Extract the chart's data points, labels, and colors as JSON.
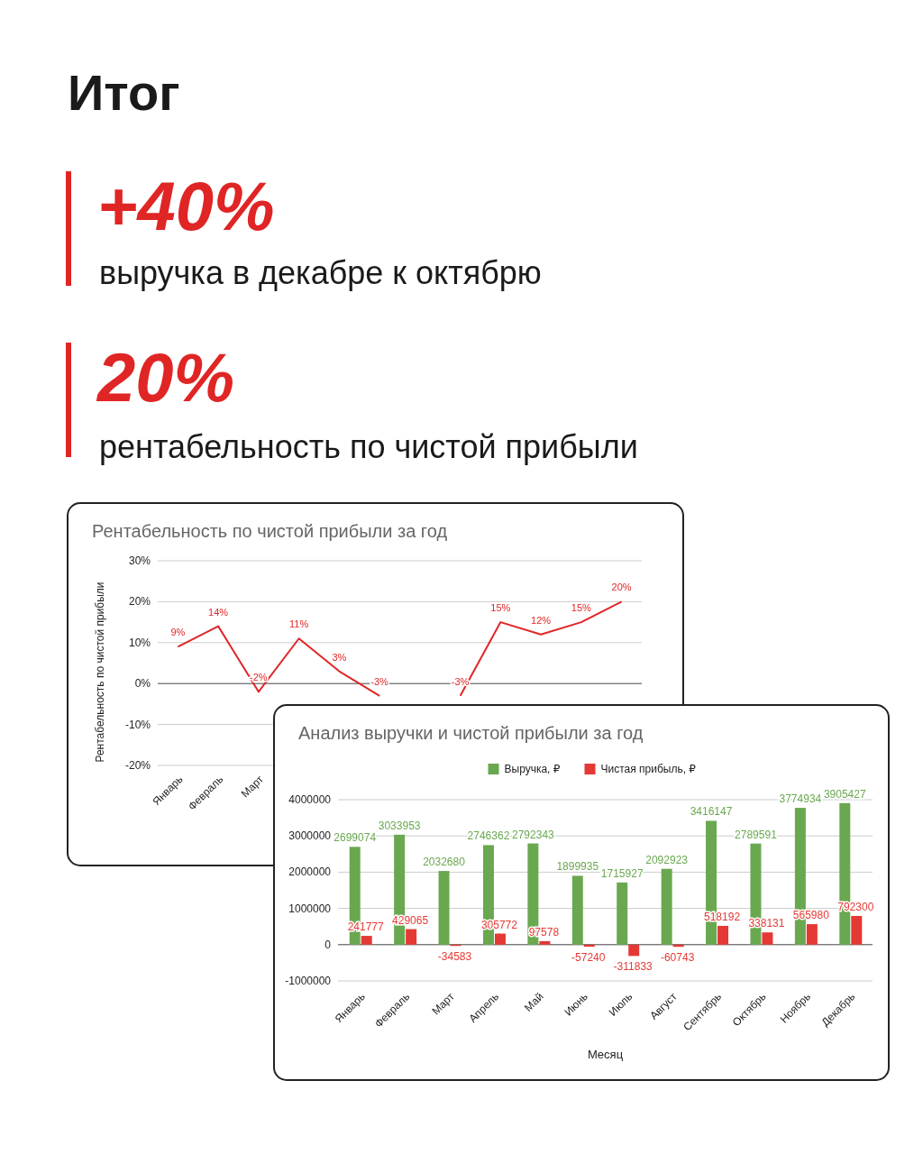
{
  "chart_data": [
    {
      "type": "other",
      "title": "Итог",
      "annotations": [
        "+40%",
        "выручка в декабре к октябрю",
        "20%",
        "рентабельность по чистой прибыли"
      ]
    },
    {
      "type": "line",
      "title": "Рентабельность по чистой прибыли за год",
      "ylabel": "Рентабельность по чистой прибыли",
      "categories": [
        "Январь",
        "Февраль",
        "Март",
        null,
        null,
        null,
        null,
        null,
        null,
        null,
        null,
        null
      ],
      "series": [
        {
          "color": "#e02525",
          "values": [
            9,
            14,
            -2,
            11,
            3,
            -3,
            null,
            -3,
            15,
            12,
            15,
            20
          ],
          "value_labels": [
            "9%",
            "14%",
            "-2%",
            "11%",
            "3%",
            "-3%",
            null,
            "-3%",
            "15%",
            "12%",
            "15%",
            "20%"
          ]
        }
      ],
      "ylim": [
        -20,
        30
      ],
      "yticks": [
        {
          "value": -20,
          "label": "-20%"
        },
        {
          "value": -10,
          "label": "-10%"
        },
        {
          "value": 0,
          "label": "0%"
        },
        {
          "value": 10,
          "label": "10%"
        },
        {
          "value": 20,
          "label": "20%"
        },
        {
          "value": 30,
          "label": "30%"
        }
      ],
      "grid": "y",
      "marker": "none"
    },
    {
      "type": "bar",
      "title": "Анализ выручки и чистой прибыли за год",
      "xlabel": "Месяц",
      "categories": [
        "Январь",
        "Февраль",
        "Март",
        "Апрель",
        "Май",
        "Июнь",
        "Июль",
        "Август",
        "Сентябрь",
        "Октябрь",
        "Ноябрь",
        "Декабрь"
      ],
      "series": [
        {
          "name": "Выручка, ₽",
          "color": "#6aa84f",
          "values": [
            2699074,
            3033953,
            2032680,
            2746362,
            2792343,
            1899935,
            1715927,
            2092923,
            3416147,
            2789591,
            3774934,
            3905427
          ]
        },
        {
          "name": "Чистая прибыль, ₽",
          "color": "#e53935",
          "values": [
            241777,
            429065,
            -34583,
            305772,
            97578,
            -57240,
            -311833,
            -60743,
            518192,
            338131,
            565980,
            792300
          ]
        }
      ],
      "ylim": [
        -1000000,
        4000000
      ],
      "yticks": [
        -1000000,
        0,
        1000000,
        2000000,
        3000000,
        4000000
      ],
      "grid": "y",
      "legend": "top",
      "data_labels": true
    }
  ]
}
